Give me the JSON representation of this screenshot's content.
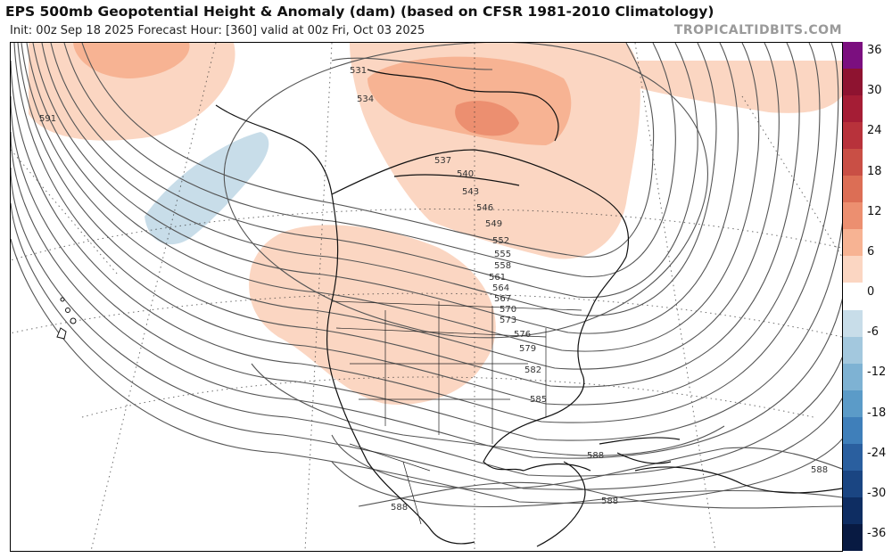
{
  "header": {
    "title": "EPS 500mb Geopotential Height & Anomaly (dam) (based on CFSR 1981-2010 Climatology)",
    "subtitle": "Init: 00z Sep 18 2025   Forecast Hour: [360]   valid at 00z Fri, Oct 03 2025",
    "credit": "TROPICALTIDBITS.COM"
  },
  "colorbar": {
    "ticks": [
      "36",
      "30",
      "24",
      "18",
      "12",
      "6",
      "0",
      "-6",
      "-12",
      "-18",
      "-24",
      "-30",
      "-36"
    ],
    "colors": [
      "#7b0f7f",
      "#8e1330",
      "#a51d35",
      "#b8323b",
      "#c94f45",
      "#dc6e55",
      "#ec8f70",
      "#f7b393",
      "#fbd6c2",
      "#ffffff",
      "#c8dde9",
      "#a3c8de",
      "#7eb2d3",
      "#5b9bc8",
      "#3f7fba",
      "#2a5f9f",
      "#1a4582",
      "#0e2d62",
      "#081a42"
    ]
  },
  "contours": {
    "labels": [
      "531",
      "534",
      "537",
      "540",
      "543",
      "546",
      "549",
      "552",
      "555",
      "558",
      "561",
      "564",
      "567",
      "570",
      "573",
      "576",
      "579",
      "582",
      "585",
      "588",
      "591"
    ],
    "units": "dam"
  },
  "anomaly_units": "dam"
}
